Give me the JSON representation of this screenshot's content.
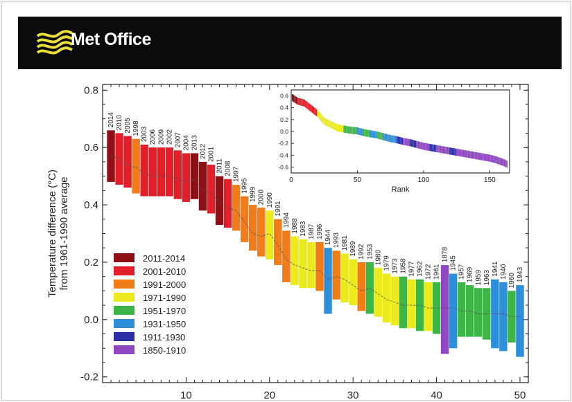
{
  "brand": {
    "name": "Met Office"
  },
  "colors": {
    "banner": "#0b0b0b",
    "brand_yellow": "#e8df3a",
    "inset_border": "#333333"
  },
  "chart_data": [
    {
      "type": "bar",
      "subtype": "range-bars-with-central-estimate",
      "title": "",
      "xlabel": "",
      "ylabel": "Temperature difference (°C) from 1961-1990 average",
      "xlim": [
        0,
        51
      ],
      "ylim": [
        -0.22,
        0.82
      ],
      "yticks": [
        -0.2,
        0.0,
        0.2,
        0.4,
        0.6,
        0.8
      ],
      "xticks": [
        10,
        20,
        30,
        40,
        50
      ],
      "legend_position": "bottom-left",
      "legend": [
        {
          "label": "2011-2014",
          "color": "#8e1015"
        },
        {
          "label": "2001-2010",
          "color": "#e3202a"
        },
        {
          "label": "1991-2000",
          "color": "#f07c1a"
        },
        {
          "label": "1971-1990",
          "color": "#eaea1e"
        },
        {
          "label": "1951-1970",
          "color": "#3fb548"
        },
        {
          "label": "1931-1950",
          "color": "#2e8fd8"
        },
        {
          "label": "1911-1930",
          "color": "#2d2fa8"
        },
        {
          "label": "1850-1910",
          "color": "#8f48c2"
        }
      ],
      "series": [
        {
          "rank": 1,
          "year": "2014",
          "group": "2011-2014",
          "value": 0.57,
          "low": 0.48,
          "high": 0.66
        },
        {
          "rank": 2,
          "year": "2010",
          "group": "2001-2010",
          "value": 0.56,
          "low": 0.47,
          "high": 0.65
        },
        {
          "rank": 3,
          "year": "2005",
          "group": "2001-2010",
          "value": 0.54,
          "low": 0.46,
          "high": 0.64
        },
        {
          "rank": 4,
          "year": "1998",
          "group": "1991-2000",
          "value": 0.53,
          "low": 0.44,
          "high": 0.63
        },
        {
          "rank": 5,
          "year": "2003",
          "group": "2001-2010",
          "value": 0.51,
          "low": 0.43,
          "high": 0.61
        },
        {
          "rank": 6,
          "year": "2006",
          "group": "2001-2010",
          "value": 0.5,
          "low": 0.43,
          "high": 0.6
        },
        {
          "rank": 7,
          "year": "2009",
          "group": "2001-2010",
          "value": 0.5,
          "low": 0.43,
          "high": 0.6
        },
        {
          "rank": 8,
          "year": "2002",
          "group": "2001-2010",
          "value": 0.5,
          "low": 0.43,
          "high": 0.6
        },
        {
          "rank": 9,
          "year": "2007",
          "group": "2001-2010",
          "value": 0.49,
          "low": 0.42,
          "high": 0.59
        },
        {
          "rank": 10,
          "year": "2004",
          "group": "2001-2010",
          "value": 0.48,
          "low": 0.41,
          "high": 0.58
        },
        {
          "rank": 11,
          "year": "2013",
          "group": "2011-2014",
          "value": 0.49,
          "low": 0.42,
          "high": 0.58
        },
        {
          "rank": 12,
          "year": "2012",
          "group": "2011-2014",
          "value": 0.45,
          "low": 0.38,
          "high": 0.55
        },
        {
          "rank": 13,
          "year": "2001",
          "group": "2001-2010",
          "value": 0.44,
          "low": 0.37,
          "high": 0.54
        },
        {
          "rank": 14,
          "year": "2011",
          "group": "2011-2014",
          "value": 0.41,
          "low": 0.33,
          "high": 0.5
        },
        {
          "rank": 15,
          "year": "2008",
          "group": "2001-2010",
          "value": 0.39,
          "low": 0.32,
          "high": 0.49
        },
        {
          "rank": 16,
          "year": "1997",
          "group": "1991-2000",
          "value": 0.38,
          "low": 0.31,
          "high": 0.47
        },
        {
          "rank": 17,
          "year": "1995",
          "group": "1991-2000",
          "value": 0.34,
          "low": 0.27,
          "high": 0.43
        },
        {
          "rank": 18,
          "year": "1999",
          "group": "1991-2000",
          "value": 0.3,
          "low": 0.24,
          "high": 0.4
        },
        {
          "rank": 19,
          "year": "2000",
          "group": "1991-2000",
          "value": 0.29,
          "low": 0.22,
          "high": 0.39
        },
        {
          "rank": 20,
          "year": "1990",
          "group": "1971-1990",
          "value": 0.3,
          "low": 0.21,
          "high": 0.38
        },
        {
          "rank": 21,
          "year": "1991",
          "group": "1991-2000",
          "value": 0.26,
          "low": 0.19,
          "high": 0.35
        },
        {
          "rank": 22,
          "year": "1994",
          "group": "1991-2000",
          "value": 0.21,
          "low": 0.13,
          "high": 0.31
        },
        {
          "rank": 23,
          "year": "1988",
          "group": "1971-1990",
          "value": 0.19,
          "low": 0.12,
          "high": 0.29
        },
        {
          "rank": 24,
          "year": "1983",
          "group": "1971-1990",
          "value": 0.18,
          "low": 0.11,
          "high": 0.28
        },
        {
          "rank": 25,
          "year": "1987",
          "group": "1971-1990",
          "value": 0.17,
          "low": 0.11,
          "high": 0.27
        },
        {
          "rank": 26,
          "year": "1996",
          "group": "1991-2000",
          "value": 0.17,
          "low": 0.1,
          "high": 0.27
        },
        {
          "rank": 27,
          "year": "1944",
          "group": "1931-1950",
          "value": 0.14,
          "low": 0.02,
          "high": 0.25
        },
        {
          "rank": 28,
          "year": "1993",
          "group": "1991-2000",
          "value": 0.15,
          "low": 0.07,
          "high": 0.24
        },
        {
          "rank": 29,
          "year": "1981",
          "group": "1971-1990",
          "value": 0.14,
          "low": 0.06,
          "high": 0.23
        },
        {
          "rank": 30,
          "year": "1989",
          "group": "1971-1990",
          "value": 0.12,
          "low": 0.05,
          "high": 0.21
        },
        {
          "rank": 31,
          "year": "1992",
          "group": "1991-2000",
          "value": 0.1,
          "low": 0.03,
          "high": 0.2
        },
        {
          "rank": 32,
          "year": "1953",
          "group": "1951-1970",
          "value": 0.11,
          "low": 0.02,
          "high": 0.2
        },
        {
          "rank": 33,
          "year": "1980",
          "group": "1971-1990",
          "value": 0.09,
          "low": 0.01,
          "high": 0.18
        },
        {
          "rank": 34,
          "year": "1979",
          "group": "1971-1990",
          "value": 0.07,
          "low": -0.01,
          "high": 0.16
        },
        {
          "rank": 35,
          "year": "1973",
          "group": "1971-1990",
          "value": 0.06,
          "low": -0.02,
          "high": 0.15
        },
        {
          "rank": 36,
          "year": "1958",
          "group": "1951-1970",
          "value": 0.05,
          "low": -0.03,
          "high": 0.15
        },
        {
          "rank": 37,
          "year": "1977",
          "group": "1971-1990",
          "value": 0.05,
          "low": -0.03,
          "high": 0.14
        },
        {
          "rank": 38,
          "year": "1962",
          "group": "1951-1970",
          "value": 0.05,
          "low": -0.04,
          "high": 0.14
        },
        {
          "rank": 39,
          "year": "1972",
          "group": "1971-1990",
          "value": 0.04,
          "low": -0.04,
          "high": 0.13
        },
        {
          "rank": 40,
          "year": "1961",
          "group": "1951-1970",
          "value": 0.04,
          "low": -0.05,
          "high": 0.13
        },
        {
          "rank": 41,
          "year": "1878",
          "group": "1850-1910",
          "value": 0.04,
          "low": -0.12,
          "high": 0.19
        },
        {
          "rank": 42,
          "year": "1945",
          "group": "1931-1950",
          "value": 0.04,
          "low": -0.1,
          "high": 0.16
        },
        {
          "rank": 43,
          "year": "1957",
          "group": "1951-1970",
          "value": 0.03,
          "low": -0.06,
          "high": 0.13
        },
        {
          "rank": 44,
          "year": "1969",
          "group": "1951-1970",
          "value": 0.03,
          "low": -0.06,
          "high": 0.12
        },
        {
          "rank": 45,
          "year": "1959",
          "group": "1951-1970",
          "value": 0.02,
          "low": -0.06,
          "high": 0.11
        },
        {
          "rank": 46,
          "year": "1963",
          "group": "1951-1970",
          "value": 0.02,
          "low": -0.07,
          "high": 0.11
        },
        {
          "rank": 47,
          "year": "1941",
          "group": "1931-1950",
          "value": 0.02,
          "low": -0.1,
          "high": 0.14
        },
        {
          "rank": 48,
          "year": "1940",
          "group": "1931-1950",
          "value": 0.02,
          "low": -0.11,
          "high": 0.13
        },
        {
          "rank": 49,
          "year": "1960",
          "group": "1951-1970",
          "value": 0.01,
          "low": -0.08,
          "high": 0.1
        },
        {
          "rank": 50,
          "year": "1943",
          "group": "1931-1950",
          "value": 0.01,
          "low": -0.13,
          "high": 0.12
        }
      ]
    },
    {
      "type": "scatter",
      "subtype": "inset",
      "title": "",
      "xlabel": "Rank",
      "ylabel": "",
      "xlim": [
        0,
        165
      ],
      "ylim": [
        -0.7,
        0.7
      ],
      "xticks": [
        0,
        50,
        100,
        150
      ],
      "yticks": [
        0.6,
        0.4,
        0.2,
        0.0,
        -0.2,
        -0.4,
        -0.6
      ],
      "ytick_labels": [
        "0.6",
        "0.4",
        "0.2",
        "0.0",
        "-0.2",
        "-0.4",
        "-0.6"
      ],
      "points": [
        {
          "x": 1,
          "y": 0.57,
          "group": "2011-2014"
        },
        {
          "x": 5,
          "y": 0.51,
          "group": "2001-2010"
        },
        {
          "x": 10,
          "y": 0.48,
          "group": "2001-2010"
        },
        {
          "x": 15,
          "y": 0.39,
          "group": "2001-2010"
        },
        {
          "x": 20,
          "y": 0.3,
          "group": "1971-1990"
        },
        {
          "x": 25,
          "y": 0.17,
          "group": "1971-1990"
        },
        {
          "x": 30,
          "y": 0.12,
          "group": "1971-1990"
        },
        {
          "x": 35,
          "y": 0.06,
          "group": "1971-1990"
        },
        {
          "x": 40,
          "y": 0.04,
          "group": "1951-1970"
        },
        {
          "x": 45,
          "y": 0.02,
          "group": "1951-1970"
        },
        {
          "x": 50,
          "y": 0.01,
          "group": "1931-1950"
        },
        {
          "x": 55,
          "y": -0.02,
          "group": "1951-1970"
        },
        {
          "x": 60,
          "y": -0.04,
          "group": "1931-1950"
        },
        {
          "x": 65,
          "y": -0.06,
          "group": "1951-1970"
        },
        {
          "x": 70,
          "y": -0.09,
          "group": "1931-1950"
        },
        {
          "x": 75,
          "y": -0.12,
          "group": "1931-1950"
        },
        {
          "x": 80,
          "y": -0.14,
          "group": "1911-1930"
        },
        {
          "x": 85,
          "y": -0.17,
          "group": "1850-1910"
        },
        {
          "x": 90,
          "y": -0.19,
          "group": "1911-1930"
        },
        {
          "x": 95,
          "y": -0.22,
          "group": "1850-1910"
        },
        {
          "x": 100,
          "y": -0.25,
          "group": "1850-1910"
        },
        {
          "x": 105,
          "y": -0.27,
          "group": "1911-1930"
        },
        {
          "x": 110,
          "y": -0.29,
          "group": "1850-1910"
        },
        {
          "x": 115,
          "y": -0.31,
          "group": "1850-1910"
        },
        {
          "x": 120,
          "y": -0.33,
          "group": "1911-1930"
        },
        {
          "x": 125,
          "y": -0.35,
          "group": "1850-1910"
        },
        {
          "x": 130,
          "y": -0.37,
          "group": "1850-1910"
        },
        {
          "x": 135,
          "y": -0.39,
          "group": "1850-1910"
        },
        {
          "x": 140,
          "y": -0.41,
          "group": "1850-1910"
        },
        {
          "x": 145,
          "y": -0.43,
          "group": "1850-1910"
        },
        {
          "x": 150,
          "y": -0.45,
          "group": "1850-1910"
        },
        {
          "x": 155,
          "y": -0.48,
          "group": "1850-1910"
        },
        {
          "x": 160,
          "y": -0.52,
          "group": "1850-1910"
        },
        {
          "x": 163,
          "y": -0.55,
          "group": "1850-1910"
        }
      ]
    }
  ]
}
